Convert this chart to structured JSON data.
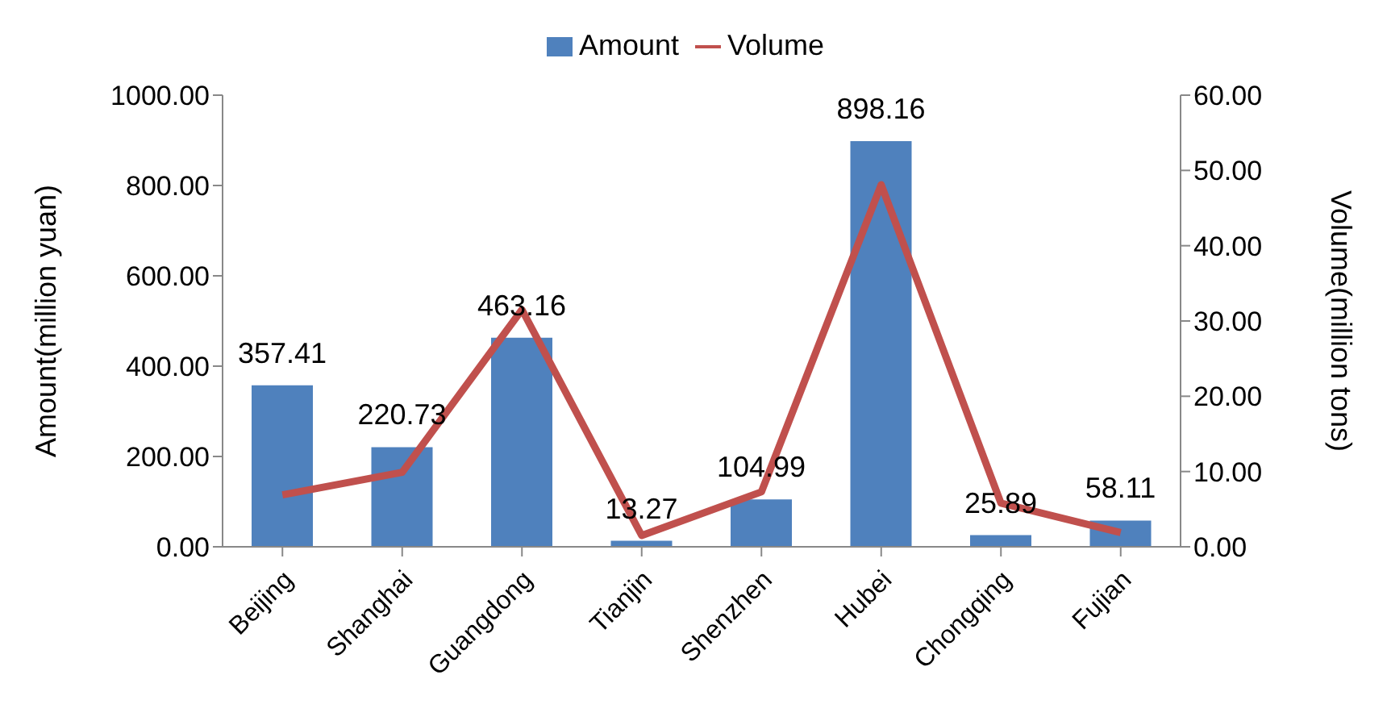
{
  "chart_data": {
    "type": "bar",
    "categories": [
      "Beijing",
      "Shanghai",
      "Guangdong",
      "Tianjin",
      "Shenzhen",
      "Hubei",
      "Chongqing",
      "Fujian"
    ],
    "ylabel": "Amount(million yuan)",
    "y2label": "Volume(million tons)",
    "series": [
      {
        "name": "Amount",
        "color": "#4f81bd",
        "values": [
          357.41,
          220.73,
          463.16,
          13.27,
          104.99,
          898.16,
          25.89,
          58.11
        ],
        "value_labels": [
          "357.41",
          "220.73",
          "463.16",
          "13.27",
          "104.99",
          "898.16",
          "25.89",
          "58.11"
        ]
      },
      {
        "name": "Volume",
        "type": "line",
        "axis": "y2",
        "color": "#c0504d",
        "values": [
          6.9,
          9.9,
          31.5,
          1.5,
          7.3,
          48.1,
          5.8,
          1.9
        ]
      }
    ],
    "ylim": [
      0,
      1000
    ],
    "yticks": [
      {
        "value": 0,
        "label": "0.00"
      },
      {
        "value": 200,
        "label": "200.00"
      },
      {
        "value": 400,
        "label": "400.00"
      },
      {
        "value": 600,
        "label": "600.00"
      },
      {
        "value": 800,
        "label": "800.00"
      },
      {
        "value": 1000,
        "label": "1000.00"
      }
    ],
    "y2lim": [
      0,
      60
    ],
    "y2ticks": [
      {
        "value": 0,
        "label": "0.00"
      },
      {
        "value": 10,
        "label": "10.00"
      },
      {
        "value": 20,
        "label": "20.00"
      },
      {
        "value": 30,
        "label": "30.00"
      },
      {
        "value": 40,
        "label": "40.00"
      },
      {
        "value": 50,
        "label": "50.00"
      },
      {
        "value": 60,
        "label": "60.00"
      }
    ],
    "legend": "top",
    "grid": false,
    "marker": "none"
  }
}
